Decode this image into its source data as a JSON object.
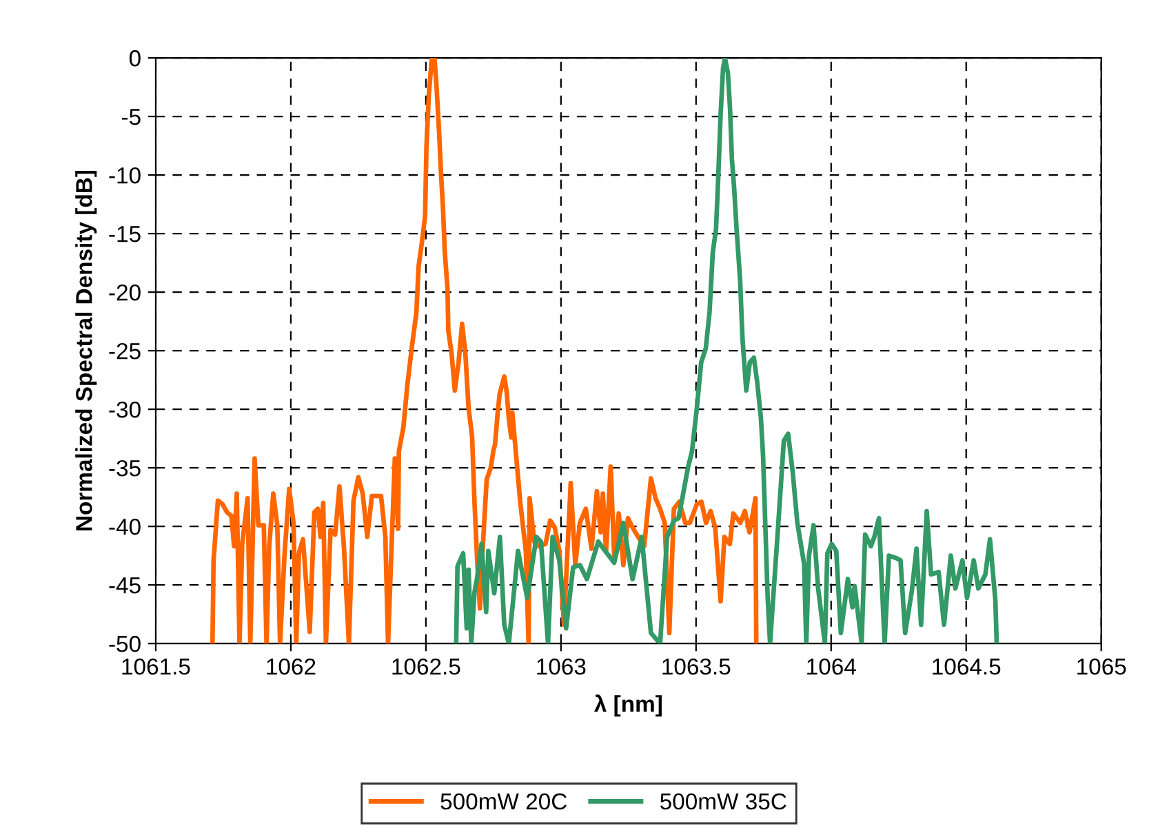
{
  "chart_data": {
    "type": "line",
    "xlabel": "λ [nm]",
    "ylabel": "Normalized Spectral Density [dB]",
    "xlim": [
      1061.5,
      1065
    ],
    "xticks": [
      1061.5,
      1062,
      1062.5,
      1063,
      1063.5,
      1064,
      1064.5,
      1065
    ],
    "ylim": [
      -50,
      0
    ],
    "yticks": [
      -50,
      -45,
      -40,
      -35,
      -30,
      -25,
      -20,
      -15,
      -10,
      -5,
      0
    ],
    "grid": true,
    "legend": "bottom",
    "line_style": "solid",
    "marker": "none",
    "series": [
      {
        "name": "500mW 20C",
        "color": "#ff6600",
        "x": [
          1061.71,
          1061.714,
          1061.73,
          1061.747,
          1061.764,
          1061.78,
          1061.79,
          1061.8,
          1061.81,
          1061.82,
          1061.84,
          1061.85,
          1061.866,
          1061.88,
          1061.9,
          1061.91,
          1061.92,
          1061.935,
          1061.95,
          1061.96,
          1061.977,
          1061.994,
          1062.01,
          1062.02,
          1062.03,
          1062.045,
          1062.07,
          1062.087,
          1062.1,
          1062.11,
          1062.12,
          1062.13,
          1062.147,
          1062.164,
          1062.18,
          1062.197,
          1062.215,
          1062.232,
          1062.25,
          1062.266,
          1062.283,
          1062.3,
          1062.317,
          1062.334,
          1062.35,
          1062.36,
          1062.371,
          1062.385,
          1062.397,
          1062.4,
          1062.417,
          1062.431,
          1062.448,
          1062.465,
          1062.473,
          1062.485,
          1062.497,
          1062.502,
          1062.511,
          1062.522,
          1062.532,
          1062.539,
          1062.549,
          1062.556,
          1062.563,
          1062.57,
          1062.58,
          1062.583,
          1062.595,
          1062.607,
          1062.621,
          1062.634,
          1062.646,
          1062.658,
          1062.671,
          1062.68,
          1062.69,
          1062.7,
          1062.71,
          1062.725,
          1062.74,
          1062.75,
          1062.756,
          1062.765,
          1062.773,
          1062.79,
          1062.799,
          1062.807,
          1062.816,
          1062.82,
          1062.835,
          1062.85,
          1062.87,
          1062.88,
          1062.884,
          1062.901,
          1062.918,
          1062.943,
          1062.96,
          1062.977,
          1062.994,
          1063.011,
          1063.036,
          1063.053,
          1063.07,
          1063.092,
          1063.113,
          1063.133,
          1063.147,
          1063.155,
          1063.167,
          1063.184,
          1063.197,
          1063.214,
          1063.231,
          1063.248,
          1063.265,
          1063.286,
          1063.308,
          1063.333,
          1063.35,
          1063.367,
          1063.384,
          1063.401,
          1063.418,
          1063.438,
          1063.46,
          1063.477,
          1063.503,
          1063.52,
          1063.537,
          1063.554,
          1063.571,
          1063.591,
          1063.605,
          1063.625,
          1063.638,
          1063.664,
          1063.681,
          1063.698,
          1063.72,
          1063.723
        ],
        "values": [
          -50,
          -42.9,
          -37.8,
          -38.1,
          -38.8,
          -39.1,
          -41.7,
          -37.2,
          -50,
          -41.5,
          -37.6,
          -50,
          -34.2,
          -39.9,
          -39.9,
          -50,
          -41.7,
          -37.2,
          -39.9,
          -50,
          -42.3,
          -36.8,
          -39.7,
          -50,
          -42.3,
          -41.1,
          -49,
          -38.8,
          -38.5,
          -40.9,
          -38,
          -50,
          -40.3,
          -40.7,
          -36.6,
          -41.9,
          -50,
          -37.8,
          -35.8,
          -37.2,
          -40.9,
          -37.4,
          -37.4,
          -37.4,
          -40.9,
          -50,
          -42.9,
          -34.2,
          -40.2,
          -33.6,
          -31.5,
          -28,
          -24.7,
          -21.7,
          -17.8,
          -15.8,
          -13.5,
          -7.6,
          -3.1,
          0,
          -0.1,
          -2.3,
          -6.4,
          -9.9,
          -12.7,
          -16.6,
          -19.7,
          -23.3,
          -25.2,
          -28.4,
          -26,
          -22.7,
          -25.2,
          -29.9,
          -32.3,
          -38,
          -43,
          -47,
          -42,
          -36,
          -35,
          -33.5,
          -33,
          -30.5,
          -28.7,
          -27.2,
          -28.5,
          -30.8,
          -32.4,
          -30.3,
          -34.2,
          -38.1,
          -42.1,
          -50,
          -37.6,
          -41.3,
          -41.7,
          -41.5,
          -39.5,
          -40.1,
          -42.1,
          -48.4,
          -36.3,
          -43.3,
          -39.7,
          -38.5,
          -41.9,
          -37,
          -40.5,
          -37.2,
          -42.1,
          -34.9,
          -42.5,
          -38.9,
          -43.3,
          -39.3,
          -40.1,
          -40.9,
          -41.7,
          -35.9,
          -37.6,
          -38.5,
          -39.7,
          -49.1,
          -38.5,
          -37.9,
          -39.7,
          -39.7,
          -38.1,
          -37.9,
          -39.7,
          -38.7,
          -40.1,
          -46.4,
          -40.9,
          -41.5,
          -38.9,
          -39.7,
          -38.7,
          -40.5,
          -37.6,
          -50
        ]
      },
      {
        "name": "500mW 35C",
        "color": "#339966",
        "x": [
          1062.612,
          1062.617,
          1062.638,
          1062.651,
          1062.658,
          1062.668,
          1062.68,
          1062.689,
          1062.706,
          1062.723,
          1062.731,
          1062.753,
          1062.774,
          1062.79,
          1062.807,
          1062.841,
          1062.875,
          1062.909,
          1062.926,
          1062.952,
          1062.969,
          1062.994,
          1063.019,
          1063.045,
          1063.07,
          1063.096,
          1063.138,
          1063.164,
          1063.197,
          1063.231,
          1063.265,
          1063.299,
          1063.333,
          1063.367,
          1063.393,
          1063.418,
          1063.435,
          1063.45,
          1063.47,
          1063.485,
          1063.503,
          1063.519,
          1063.536,
          1063.55,
          1063.562,
          1063.574,
          1063.582,
          1063.591,
          1063.6,
          1063.607,
          1063.618,
          1063.626,
          1063.633,
          1063.641,
          1063.65,
          1063.663,
          1063.672,
          1063.686,
          1063.699,
          1063.714,
          1063.726,
          1063.74,
          1063.748,
          1063.765,
          1063.774,
          1063.8,
          1063.825,
          1063.841,
          1063.858,
          1063.875,
          1063.9,
          1063.908,
          1063.918,
          1063.935,
          1063.952,
          1063.977,
          1063.986,
          1064.002,
          1064.019,
          1064.036,
          1064.062,
          1064.079,
          1064.087,
          1064.113,
          1064.126,
          1064.147,
          1064.16,
          1064.177,
          1064.198,
          1064.214,
          1064.24,
          1064.257,
          1064.274,
          1064.299,
          1064.316,
          1064.333,
          1064.354,
          1064.37,
          1064.398,
          1064.418,
          1064.443,
          1064.46,
          1064.486,
          1064.503,
          1064.528,
          1064.545,
          1064.571,
          1064.588,
          1064.608,
          1064.613
        ],
        "values": [
          -50,
          -43.4,
          -42.3,
          -48.7,
          -43.7,
          -50,
          -45.6,
          -44.5,
          -41.5,
          -47.3,
          -42.1,
          -45.7,
          -40.9,
          -48.4,
          -50,
          -42.1,
          -46.1,
          -40.9,
          -41.3,
          -50,
          -40.9,
          -42.9,
          -48.7,
          -43.5,
          -43.3,
          -44.5,
          -41.3,
          -42.1,
          -43.1,
          -39.7,
          -44.5,
          -40.9,
          -49.1,
          -50,
          -40.9,
          -39.5,
          -39.3,
          -37.5,
          -35,
          -33.6,
          -29.9,
          -26,
          -24.8,
          -21.7,
          -16.6,
          -14.6,
          -10.3,
          -4.8,
          -0.9,
          0,
          -1.3,
          -4.4,
          -8.7,
          -11.1,
          -14.6,
          -18.9,
          -24,
          -28.4,
          -26,
          -25.6,
          -27.6,
          -30.7,
          -33.9,
          -46,
          -50,
          -41.3,
          -32.7,
          -32.1,
          -35.4,
          -39.7,
          -43.2,
          -50,
          -42.5,
          -39.9,
          -45.3,
          -50,
          -42.3,
          -41.5,
          -42.1,
          -49.1,
          -44.5,
          -46.9,
          -45.1,
          -50,
          -40.7,
          -41.7,
          -40.9,
          -39.3,
          -50,
          -42.5,
          -42.7,
          -42.9,
          -49.1,
          -45.5,
          -41.9,
          -48.4,
          -38.7,
          -44.1,
          -43.9,
          -48.4,
          -42.5,
          -45.3,
          -42.9,
          -46.1,
          -42.9,
          -45.3,
          -44.1,
          -41.1,
          -46.3,
          -50
        ]
      }
    ]
  }
}
